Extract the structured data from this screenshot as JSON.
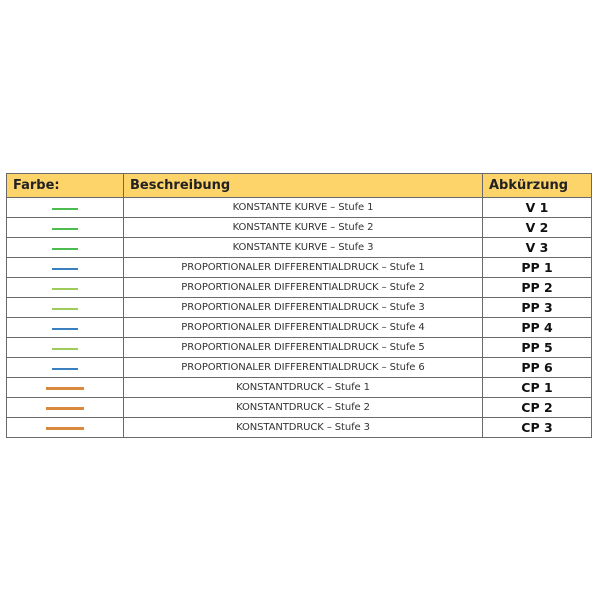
{
  "table": {
    "headers": [
      "Farbe:",
      "Beschreibung",
      "Abkürzung"
    ],
    "rows": [
      {
        "color": "#4dbb4f",
        "swatch": "short",
        "description": "KONSTANTE KURVE – Stufe 1",
        "abbr": "V 1"
      },
      {
        "color": "#4dbb4f",
        "swatch": "short",
        "description": "KONSTANTE KURVE – Stufe 2",
        "abbr": "V 2"
      },
      {
        "color": "#4dbb4f",
        "swatch": "short",
        "description": "KONSTANTE KURVE – Stufe 3",
        "abbr": "V 3"
      },
      {
        "color": "#3a7fc0",
        "swatch": "short",
        "description": "PROPORTIONALER DIFFERENTIALDRUCK – Stufe 1",
        "abbr": "PP 1"
      },
      {
        "color": "#9dcc5c",
        "swatch": "short",
        "description": "PROPORTIONALER DIFFERENTIALDRUCK – Stufe 2",
        "abbr": "PP 2"
      },
      {
        "color": "#9dcc5c",
        "swatch": "short",
        "description": "PROPORTIONALER DIFFERENTIALDRUCK – Stufe 3",
        "abbr": "PP 3"
      },
      {
        "color": "#3a7fc0",
        "swatch": "short",
        "description": "PROPORTIONALER DIFFERENTIALDRUCK – Stufe 4",
        "abbr": "PP 4"
      },
      {
        "color": "#9dcc5c",
        "swatch": "short",
        "description": "PROPORTIONALER DIFFERENTIALDRUCK – Stufe 5",
        "abbr": "PP 5"
      },
      {
        "color": "#3a7fc0",
        "swatch": "short",
        "description": "PROPORTIONALER DIFFERENTIALDRUCK – Stufe 6",
        "abbr": "PP 6"
      },
      {
        "color": "#d9893c",
        "swatch": "long",
        "description": "KONSTANTDRUCK – Stufe 1",
        "abbr": "CP 1"
      },
      {
        "color": "#d9893c",
        "swatch": "long",
        "description": "KONSTANTDRUCK – Stufe 2",
        "abbr": "CP 2"
      },
      {
        "color": "#d9893c",
        "swatch": "long",
        "description": "KONSTANTDRUCK – Stufe 3",
        "abbr": "CP 3"
      }
    ]
  },
  "colors": {
    "header_bg": "#fdd46a"
  }
}
